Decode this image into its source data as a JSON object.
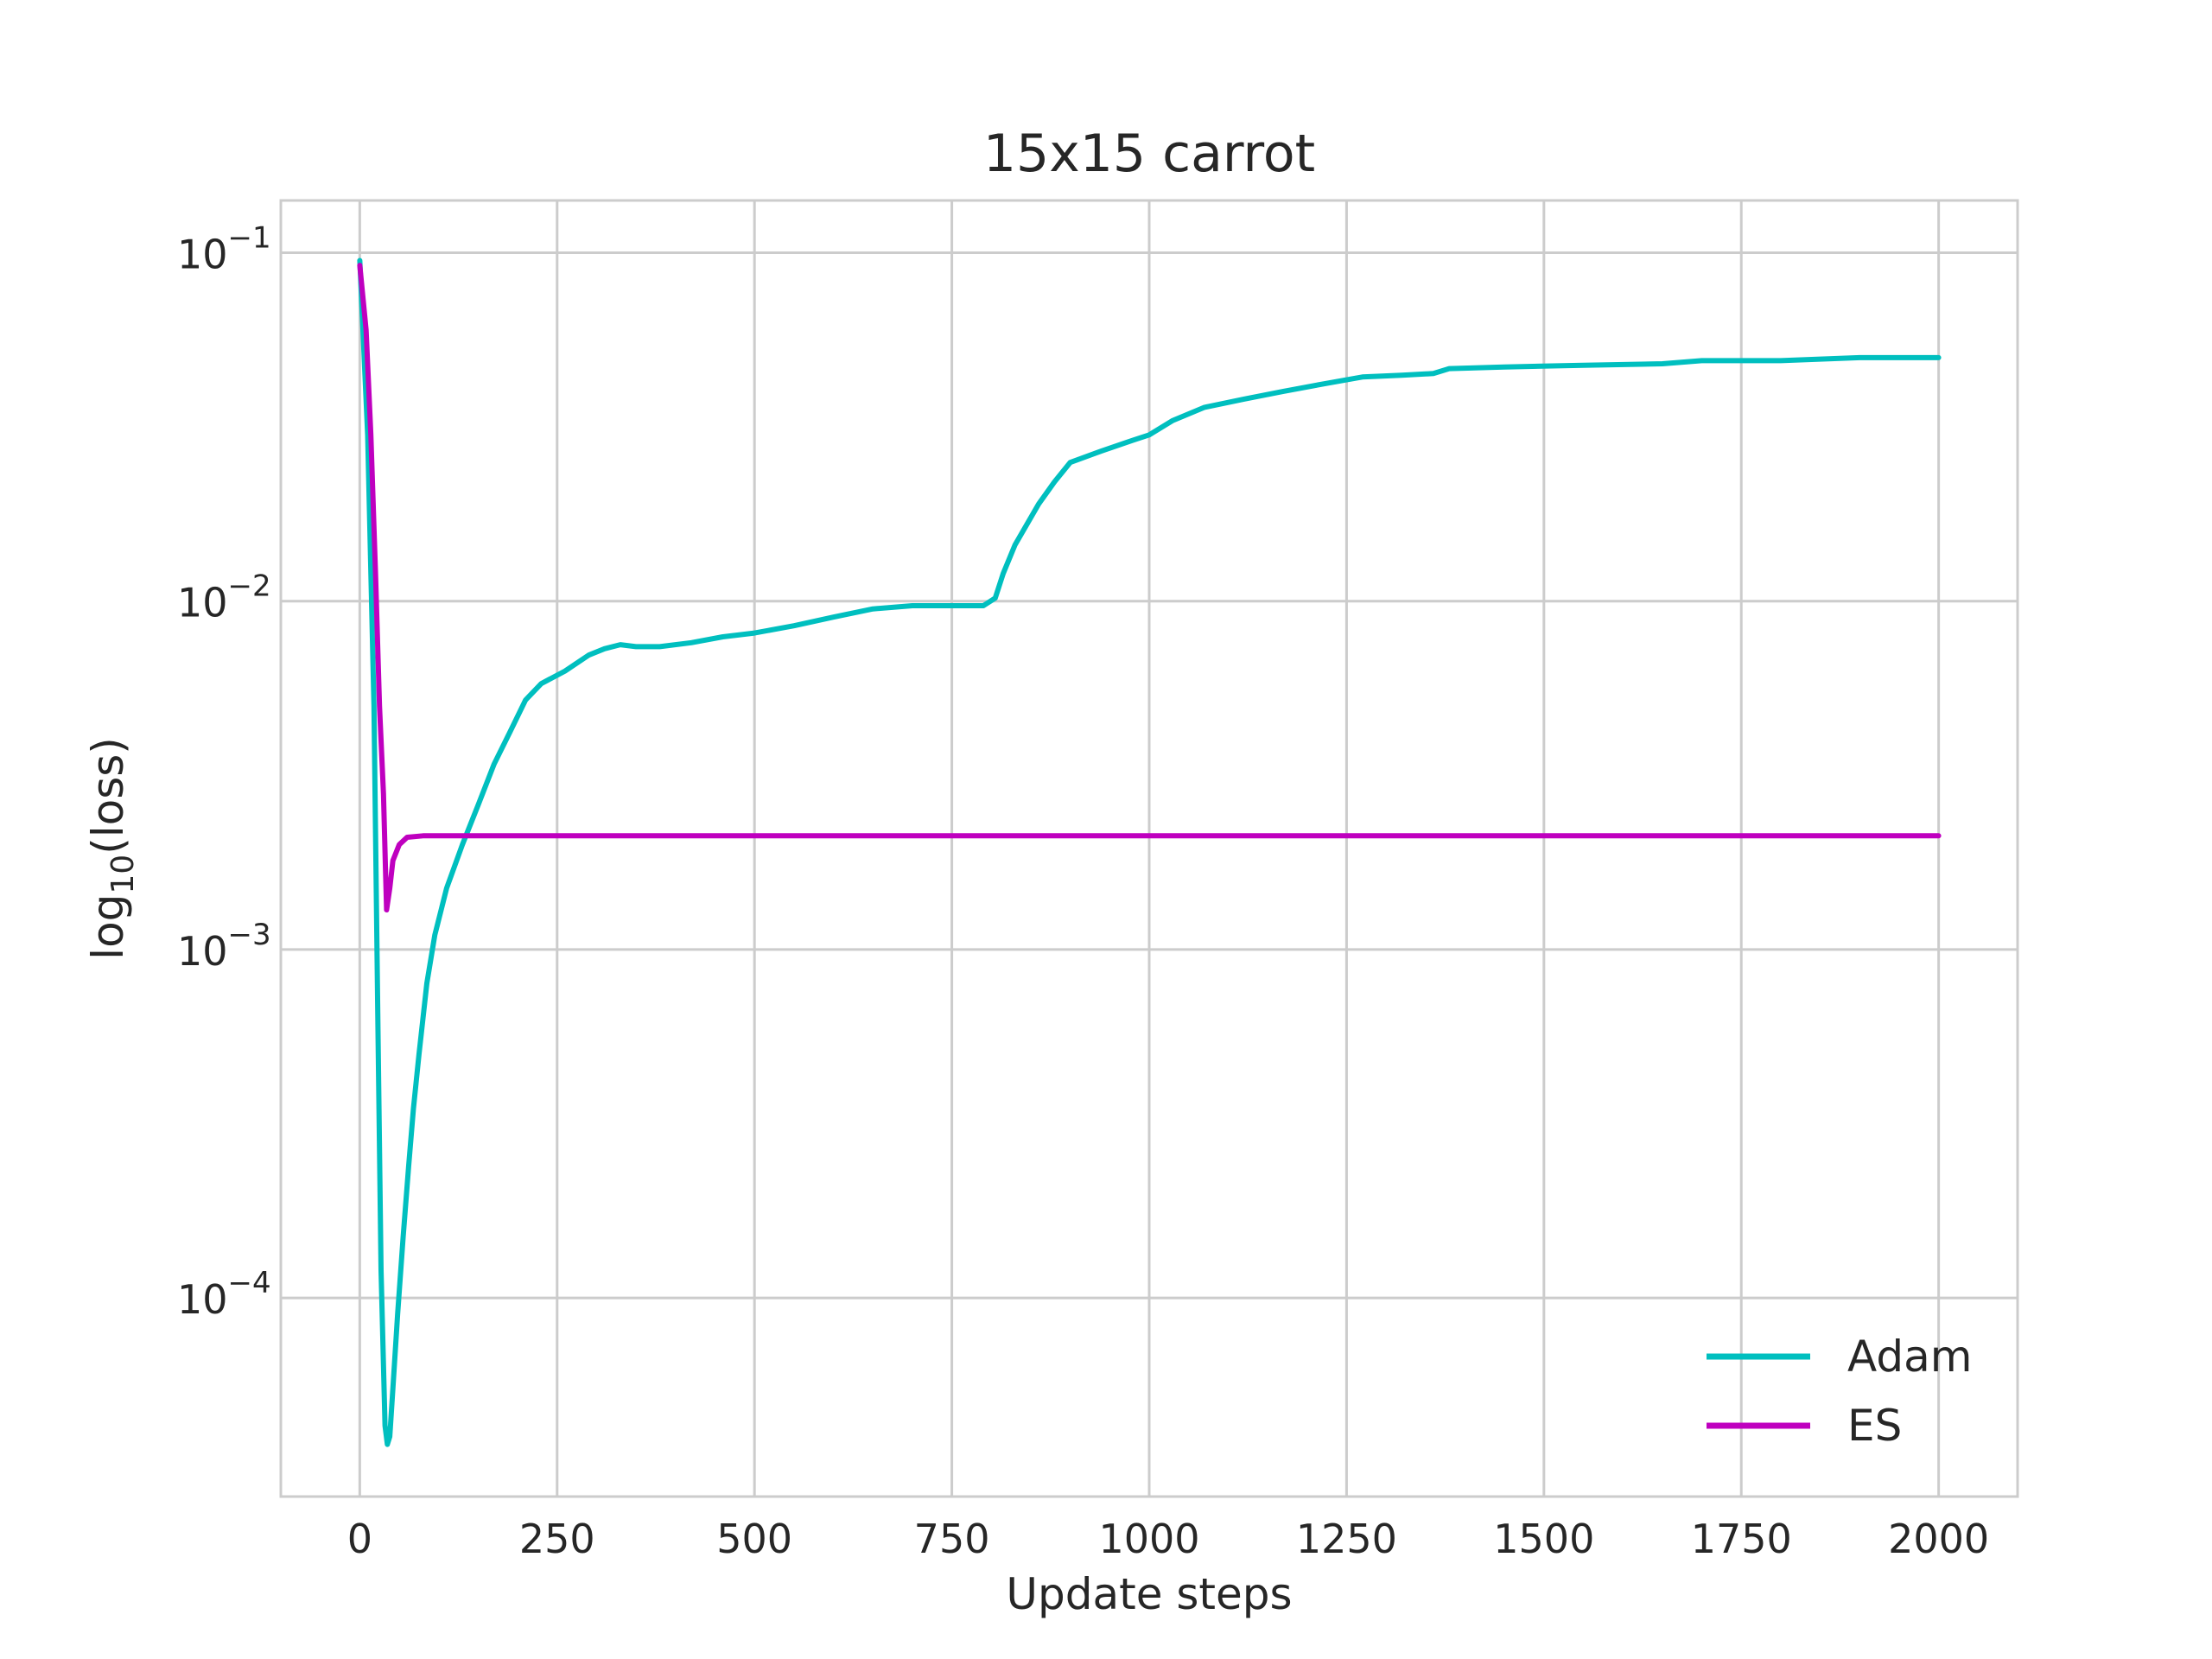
{
  "chart_data": {
    "type": "line",
    "title": "15x15 carrot",
    "xlabel": "Update steps",
    "ylabel_text": "log",
    "ylabel_sub": "10",
    "ylabel_rest": "(loss)",
    "xlim": [
      -100,
      2100
    ],
    "ylim_log10": [
      -4.57,
      -0.85
    ],
    "yscale": "log",
    "grid": true,
    "legend_position": "lower-right",
    "x_ticks": [
      0,
      250,
      500,
      750,
      1000,
      1250,
      1500,
      1750,
      2000
    ],
    "x_tick_labels": [
      "0",
      "250",
      "500",
      "750",
      "1000",
      "1250",
      "1500",
      "1750",
      "2000"
    ],
    "y_ticks": [
      0.1,
      0.01,
      0.001,
      0.0001
    ],
    "y_tick_base": "10",
    "y_tick_exponents": [
      "−1",
      "−2",
      "−3",
      "−4"
    ],
    "series": [
      {
        "name": "Adam",
        "color": "#00bfbf",
        "points": [
          [
            0,
            0.095
          ],
          [
            10,
            0.03
          ],
          [
            18,
            0.005
          ],
          [
            23,
            0.0006
          ],
          [
            27,
            0.00012
          ],
          [
            32,
            4.3e-05
          ],
          [
            35,
            3.8e-05
          ],
          [
            38,
            4e-05
          ],
          [
            42,
            5.5e-05
          ],
          [
            48,
            9e-05
          ],
          [
            55,
            0.00015
          ],
          [
            62,
            0.00024
          ],
          [
            68,
            0.00035
          ],
          [
            75,
            0.0005
          ],
          [
            85,
            0.0008
          ],
          [
            95,
            0.0011
          ],
          [
            110,
            0.0015
          ],
          [
            130,
            0.002
          ],
          [
            150,
            0.0026
          ],
          [
            170,
            0.0034
          ],
          [
            190,
            0.0042
          ],
          [
            210,
            0.0052
          ],
          [
            230,
            0.0058
          ],
          [
            260,
            0.0063
          ],
          [
            290,
            0.007
          ],
          [
            310,
            0.0073
          ],
          [
            330,
            0.0075
          ],
          [
            350,
            0.0074
          ],
          [
            380,
            0.0074
          ],
          [
            420,
            0.0076
          ],
          [
            460,
            0.0079
          ],
          [
            500,
            0.0081
          ],
          [
            550,
            0.0085
          ],
          [
            600,
            0.009
          ],
          [
            650,
            0.0095
          ],
          [
            700,
            0.0097
          ],
          [
            750,
            0.0097
          ],
          [
            790,
            0.0097
          ],
          [
            805,
            0.0102
          ],
          [
            815,
            0.012
          ],
          [
            830,
            0.0145
          ],
          [
            860,
            0.019
          ],
          [
            880,
            0.022
          ],
          [
            900,
            0.025
          ],
          [
            940,
            0.027
          ],
          [
            980,
            0.029
          ],
          [
            1000,
            0.03
          ],
          [
            1030,
            0.033
          ],
          [
            1070,
            0.036
          ],
          [
            1120,
            0.038
          ],
          [
            1170,
            0.04
          ],
          [
            1220,
            0.042
          ],
          [
            1270,
            0.044
          ],
          [
            1320,
            0.0445
          ],
          [
            1360,
            0.045
          ],
          [
            1380,
            0.0465
          ],
          [
            1450,
            0.047
          ],
          [
            1550,
            0.0475
          ],
          [
            1650,
            0.048
          ],
          [
            1700,
            0.049
          ],
          [
            1800,
            0.049
          ],
          [
            1900,
            0.05
          ],
          [
            2000,
            0.05
          ]
        ]
      },
      {
        "name": "ES",
        "color": "#bf00bf",
        "points": [
          [
            0,
            0.092
          ],
          [
            8,
            0.06
          ],
          [
            14,
            0.03
          ],
          [
            20,
            0.012
          ],
          [
            25,
            0.005
          ],
          [
            30,
            0.0028
          ],
          [
            34,
            0.0013
          ],
          [
            38,
            0.0015
          ],
          [
            42,
            0.0018
          ],
          [
            50,
            0.002
          ],
          [
            60,
            0.0021
          ],
          [
            80,
            0.00212
          ],
          [
            150,
            0.00212
          ],
          [
            500,
            0.00212
          ],
          [
            1000,
            0.00212
          ],
          [
            1500,
            0.00212
          ],
          [
            2000,
            0.00212
          ]
        ]
      }
    ]
  }
}
